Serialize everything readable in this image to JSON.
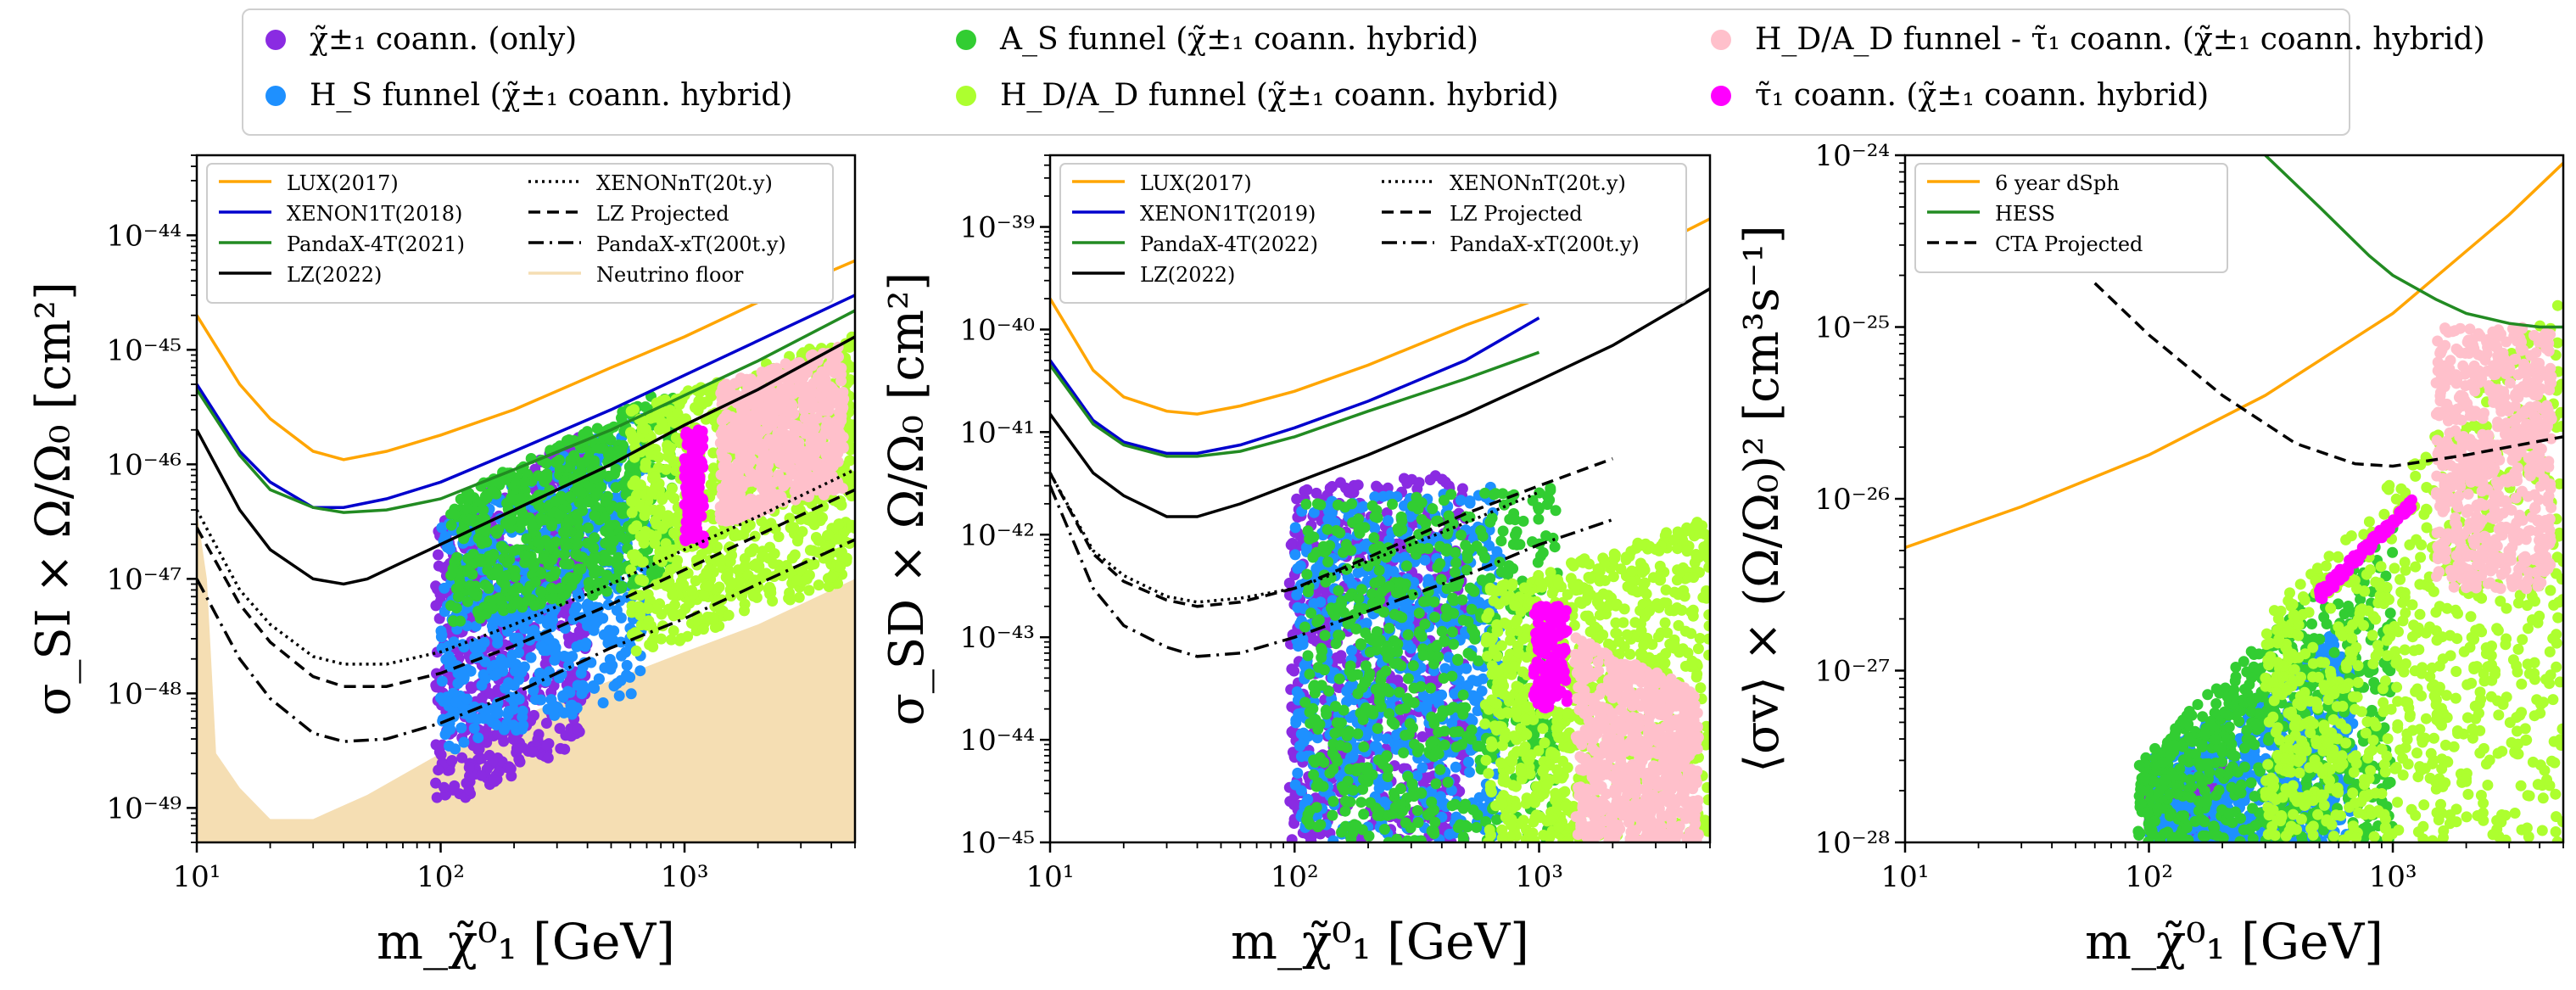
{
  "legend": {
    "items": [
      {
        "label": "χ̃±₁ coann. (only)",
        "color": "#8a2be2"
      },
      {
        "label": "H_S funnel (χ̃±₁ coann. hybrid)",
        "color": "#1e90ff"
      },
      {
        "label": "A_S funnel (χ̃±₁ coann. hybrid)",
        "color": "#32cd32"
      },
      {
        "label": "H_D/A_D funnel (χ̃±₁ coann. hybrid)",
        "color": "#adff2f"
      },
      {
        "label": "H_D/A_D funnel - τ̃₁ coann. (χ̃±₁ coann. hybrid)",
        "color": "#ffc0cb"
      },
      {
        "label": "τ̃₁ coann. (χ̃±₁ coann. hybrid)",
        "color": "#ff00ff"
      }
    ]
  },
  "chart_data": [
    {
      "type": "scatter",
      "title": "",
      "xlabel": "m_χ̃⁰₁ [GeV]",
      "ylabel": "σ_SI × Ω/Ω₀ [cm²]",
      "xscale": "log",
      "yscale": "log",
      "xlim": [
        10,
        5000
      ],
      "ylim": [
        5e-50,
        5e-44
      ],
      "xticks": [
        {
          "v": 10,
          "label": "10¹"
        },
        {
          "v": 100,
          "label": "10²"
        },
        {
          "v": 1000,
          "label": "10³"
        }
      ],
      "yticks": [
        {
          "v": 1e-49,
          "label": "10⁻⁴⁹"
        },
        {
          "v": 1e-48,
          "label": "10⁻⁴⁸"
        },
        {
          "v": 1e-47,
          "label": "10⁻⁴⁷"
        },
        {
          "v": 1e-46,
          "label": "10⁻⁴⁶"
        },
        {
          "v": 1e-45,
          "label": "10⁻⁴⁵"
        },
        {
          "v": 1e-44,
          "label": "10⁻⁴⁴"
        }
      ],
      "neutrino_floor": {
        "name": "Neutrino floor",
        "color": "#f5deb3",
        "x": [
          10,
          11,
          12,
          15,
          20,
          30,
          50,
          100,
          200,
          500,
          1000,
          2000,
          5000
        ],
        "y": [
          4e-47,
          1e-47,
          3e-49,
          1.5e-49,
          8e-50,
          8e-50,
          1.3e-49,
          3e-49,
          6e-49,
          1.3e-48,
          2.3e-48,
          4e-48,
          1e-47
        ]
      },
      "lines": [
        {
          "name": "LUX(2017)",
          "color": "#ffa500",
          "style": "solid",
          "x": [
            10,
            15,
            20,
            30,
            40,
            60,
            100,
            200,
            500,
            1000,
            2000,
            5000
          ],
          "y": [
            2e-45,
            5e-46,
            2.5e-46,
            1.3e-46,
            1.1e-46,
            1.3e-46,
            1.8e-46,
            3e-46,
            7e-46,
            1.3e-45,
            2.6e-45,
            6e-45
          ]
        },
        {
          "name": "XENON1T(2018)",
          "color": "#0000cd",
          "style": "solid",
          "x": [
            10,
            15,
            20,
            30,
            40,
            60,
            100,
            200,
            500,
            1000,
            2000,
            5000
          ],
          "y": [
            5e-46,
            1.3e-46,
            7e-47,
            4.2e-47,
            4.2e-47,
            5e-47,
            7e-47,
            1.3e-46,
            3e-46,
            6e-46,
            1.2e-45,
            3e-45
          ]
        },
        {
          "name": "PandaX-4T(2021)",
          "color": "#228b22",
          "style": "solid",
          "x": [
            10,
            15,
            20,
            30,
            40,
            60,
            100,
            200,
            500,
            1000,
            2000,
            5000
          ],
          "y": [
            4.5e-46,
            1.2e-46,
            6e-47,
            4.2e-47,
            3.8e-47,
            4e-47,
            5e-47,
            9e-47,
            2e-46,
            4e-46,
            8e-46,
            2.2e-45
          ]
        },
        {
          "name": "LZ(2022)",
          "color": "#000000",
          "style": "solid",
          "x": [
            10,
            15,
            20,
            30,
            40,
            50,
            70,
            100,
            200,
            500,
            1000,
            2000,
            5000
          ],
          "y": [
            2e-46,
            4e-47,
            1.8e-47,
            1e-47,
            9e-48,
            1e-47,
            1.4e-47,
            2e-47,
            4e-47,
            1e-46,
            2.2e-46,
            4.5e-46,
            1.3e-45
          ]
        },
        {
          "name": "XENONnT(20t.y)",
          "color": "#000000",
          "style": "dotted",
          "x": [
            10,
            15,
            20,
            30,
            40,
            60,
            100,
            200,
            500,
            1000,
            2000,
            5000
          ],
          "y": [
            4e-47,
            8e-48,
            4e-48,
            2.1e-48,
            1.8e-48,
            1.8e-48,
            2.3e-48,
            4e-48,
            9e-48,
            1.8e-47,
            3.5e-47,
            9e-47
          ]
        },
        {
          "name": "LZ Projected",
          "color": "#000000",
          "style": "dashed",
          "x": [
            10,
            15,
            20,
            30,
            40,
            60,
            100,
            200,
            500,
            1000,
            2000,
            5000
          ],
          "y": [
            2.8e-47,
            6e-48,
            2.8e-48,
            1.4e-48,
            1.15e-48,
            1.15e-48,
            1.5e-48,
            2.6e-48,
            6e-48,
            1.2e-47,
            2.4e-47,
            6e-47
          ]
        },
        {
          "name": "PandaX-xT(200t.y)",
          "color": "#000000",
          "style": "dashdot",
          "x": [
            10,
            15,
            20,
            30,
            40,
            60,
            100,
            200,
            500,
            1000,
            2000,
            5000
          ],
          "y": [
            1e-47,
            2e-48,
            9e-49,
            4.5e-49,
            3.8e-49,
            4e-49,
            5.5e-49,
            1e-48,
            2.5e-48,
            4.5e-48,
            9e-48,
            2.2e-47
          ]
        }
      ],
      "regions": [
        {
          "name": "χ̃±₁ coann. (only)",
          "color": "#8a2be2",
          "x": [
            95,
            400
          ],
          "ylow": [
            9e-50,
            4e-49
          ],
          "yhigh": [
            3e-47,
            2e-46
          ]
        },
        {
          "name": "H_S funnel (χ̃±₁ coann. hybrid)",
          "color": "#1e90ff",
          "x": [
            100,
            700
          ],
          "ylow": [
            3e-49,
            1e-48
          ],
          "yhigh": [
            3e-47,
            3e-46
          ]
        },
        {
          "name": "A_S funnel (χ̃±₁ coann. hybrid)",
          "color": "#32cd32",
          "x": [
            110,
            900
          ],
          "ylow": [
            4e-48,
            1e-47
          ],
          "yhigh": [
            5e-47,
            5e-46
          ]
        },
        {
          "name": "H_D/A_D funnel (χ̃±₁ coann. hybrid)",
          "color": "#adff2f",
          "x": [
            600,
            5000
          ],
          "ylow": [
            2e-48,
            1e-47
          ],
          "yhigh": [
            3e-46,
            1.4e-45
          ]
        },
        {
          "name": "H_D/A_D funnel - τ̃₁ coann. (χ̃±₁ coann. hybrid)",
          "color": "#ffc0cb",
          "x": [
            1400,
            4500
          ],
          "ylow": [
            3e-47,
            6e-47
          ],
          "yhigh": [
            5e-46,
            1.1e-45
          ]
        },
        {
          "name": "τ̃₁ coann. (χ̃±₁ coann. hybrid)",
          "color": "#ff00ff",
          "x": [
            1000,
            1200
          ],
          "ylow": [
            2e-47,
            2e-47
          ],
          "yhigh": [
            2e-46,
            2e-46
          ]
        }
      ],
      "legend_cols": 2
    },
    {
      "type": "scatter",
      "title": "",
      "xlabel": "m_χ̃⁰₁ [GeV]",
      "ylabel": "σ_SD × Ω/Ω₀ [cm²]",
      "xscale": "log",
      "yscale": "log",
      "xlim": [
        10,
        5000
      ],
      "ylim": [
        1e-45,
        5e-39
      ],
      "xticks": [
        {
          "v": 10,
          "label": "10¹"
        },
        {
          "v": 100,
          "label": "10²"
        },
        {
          "v": 1000,
          "label": "10³"
        }
      ],
      "yticks": [
        {
          "v": 1e-45,
          "label": "10⁻⁴⁵"
        },
        {
          "v": 1e-44,
          "label": "10⁻⁴⁴"
        },
        {
          "v": 1e-43,
          "label": "10⁻⁴³"
        },
        {
          "v": 1e-42,
          "label": "10⁻⁴²"
        },
        {
          "v": 1e-41,
          "label": "10⁻⁴¹"
        },
        {
          "v": 1e-40,
          "label": "10⁻⁴⁰"
        },
        {
          "v": 1e-39,
          "label": "10⁻³⁹"
        }
      ],
      "lines": [
        {
          "name": "LUX(2017)",
          "color": "#ffa500",
          "style": "solid",
          "x": [
            10,
            15,
            20,
            30,
            40,
            60,
            100,
            200,
            500,
            1000,
            2000,
            5000
          ],
          "y": [
            2e-40,
            4e-41,
            2.2e-41,
            1.6e-41,
            1.5e-41,
            1.8e-41,
            2.5e-41,
            4.5e-41,
            1.1e-40,
            2e-40,
            4e-40,
            1.2e-39
          ]
        },
        {
          "name": "XENON1T(2019)",
          "color": "#0000cd",
          "style": "solid",
          "x": [
            10,
            15,
            20,
            30,
            40,
            60,
            100,
            200,
            500,
            1000
          ],
          "y": [
            5e-41,
            1.3e-41,
            8e-42,
            6.2e-42,
            6.2e-42,
            7.5e-42,
            1.1e-41,
            2e-41,
            5e-41,
            1.3e-40
          ]
        },
        {
          "name": "PandaX-4T(2022)",
          "color": "#228b22",
          "style": "solid",
          "x": [
            10,
            15,
            20,
            30,
            40,
            60,
            100,
            200,
            500,
            1000
          ],
          "y": [
            4.5e-41,
            1.2e-41,
            7.5e-42,
            5.8e-42,
            5.8e-42,
            6.5e-42,
            9e-42,
            1.6e-41,
            3.3e-41,
            6e-41
          ]
        },
        {
          "name": "LZ(2022)",
          "color": "#000000",
          "style": "solid",
          "x": [
            10,
            15,
            20,
            30,
            40,
            60,
            100,
            200,
            500,
            1000,
            2000,
            5000
          ],
          "y": [
            1.5e-41,
            4e-42,
            2.4e-42,
            1.5e-42,
            1.5e-42,
            2e-42,
            3.2e-42,
            6e-42,
            1.5e-41,
            3.2e-41,
            7e-41,
            2.5e-40
          ]
        },
        {
          "name": "XENONnT(20t.y)",
          "color": "#000000",
          "style": "dotted",
          "x": [
            10,
            15,
            20,
            30,
            40,
            60,
            100,
            200,
            500,
            1000
          ],
          "y": [
            4e-42,
            7e-43,
            4e-43,
            2.5e-43,
            2.2e-43,
            2.4e-43,
            3e-43,
            5.5e-43,
            1.3e-42,
            2.6e-42
          ]
        },
        {
          "name": "LZ Projected",
          "color": "#000000",
          "style": "dashed",
          "x": [
            10,
            15,
            20,
            30,
            40,
            60,
            100,
            200,
            500,
            1000,
            2000
          ],
          "y": [
            4e-42,
            6.5e-43,
            3.5e-43,
            2.3e-43,
            2e-43,
            2.2e-43,
            3e-43,
            6e-43,
            1.6e-42,
            3e-42,
            5.5e-42
          ]
        },
        {
          "name": "PandaX-xT(200t.y)",
          "color": "#000000",
          "style": "dashdot",
          "x": [
            10,
            15,
            20,
            30,
            40,
            60,
            100,
            200,
            500,
            1000,
            2000
          ],
          "y": [
            3e-42,
            3e-43,
            1.3e-43,
            8e-44,
            6.5e-44,
            7e-44,
            1e-43,
            1.8e-43,
            4e-43,
            8e-43,
            1.4e-42
          ]
        }
      ],
      "regions": [
        {
          "name": "χ̃±₁ coann. (only)",
          "color": "#8a2be2",
          "x": [
            95,
            500
          ],
          "ylow": [
            1e-45,
            1e-45
          ],
          "yhigh": [
            3e-42,
            4e-42
          ]
        },
        {
          "name": "H_S funnel (χ̃±₁ coann. hybrid)",
          "color": "#1e90ff",
          "x": [
            100,
            700
          ],
          "ylow": [
            1e-45,
            1e-45
          ],
          "yhigh": [
            2e-42,
            3e-42
          ]
        },
        {
          "name": "A_S funnel (χ̃±₁ coann. hybrid)",
          "color": "#32cd32",
          "x": [
            110,
            1200
          ],
          "ylow": [
            1e-45,
            1e-45
          ],
          "yhigh": [
            2e-42,
            3e-42
          ]
        },
        {
          "name": "H_D/A_D funnel (χ̃±₁ coann. hybrid)",
          "color": "#adff2f",
          "x": [
            600,
            5000
          ],
          "ylow": [
            1e-45,
            1e-45
          ],
          "yhigh": [
            3e-43,
            1.5e-42
          ]
        },
        {
          "name": "H_D/A_D funnel - τ̃₁ coann. (χ̃±₁ coann. hybrid)",
          "color": "#ffc0cb",
          "x": [
            1400,
            4500
          ],
          "ylow": [
            1e-45,
            1e-45
          ],
          "yhigh": [
            1e-43,
            3e-44
          ]
        },
        {
          "name": "τ̃₁ coann. (χ̃±₁ coann. hybrid)",
          "color": "#ff00ff",
          "x": [
            950,
            1300
          ],
          "ylow": [
            2e-44,
            2e-44
          ],
          "yhigh": [
            2e-43,
            2e-43
          ]
        }
      ],
      "legend_cols": 2
    },
    {
      "type": "scatter",
      "title": "",
      "xlabel": "m_χ̃⁰₁ [GeV]",
      "ylabel": "⟨σv⟩ × (Ω/Ω₀)² [cm³s⁻¹]",
      "xscale": "log",
      "yscale": "log",
      "xlim": [
        10,
        5000
      ],
      "ylim": [
        1e-28,
        1e-24
      ],
      "xticks": [
        {
          "v": 10,
          "label": "10¹"
        },
        {
          "v": 100,
          "label": "10²"
        },
        {
          "v": 1000,
          "label": "10³"
        }
      ],
      "yticks": [
        {
          "v": 1e-28,
          "label": "10⁻²⁸"
        },
        {
          "v": 1e-27,
          "label": "10⁻²⁷"
        },
        {
          "v": 1e-26,
          "label": "10⁻²⁶"
        },
        {
          "v": 1e-25,
          "label": "10⁻²⁵"
        },
        {
          "v": 1e-24,
          "label": "10⁻²⁴"
        }
      ],
      "lines": [
        {
          "name": "6 year dSph",
          "color": "#ffa500",
          "style": "solid",
          "x": [
            10,
            30,
            100,
            300,
            1000,
            3000,
            5000
          ],
          "y": [
            5.2e-27,
            9e-27,
            1.8e-26,
            4e-26,
            1.2e-25,
            4.5e-25,
            9e-25
          ]
        },
        {
          "name": "HESS",
          "color": "#228b22",
          "style": "solid",
          "x": [
            300,
            500,
            800,
            1000,
            1500,
            2000,
            3000,
            4000,
            5000
          ],
          "y": [
            1e-24,
            5e-25,
            2.6e-25,
            2e-25,
            1.45e-25,
            1.2e-25,
            1.05e-25,
            1e-25,
            1e-25
          ]
        },
        {
          "name": "CTA Projected",
          "color": "#000000",
          "style": "dashed",
          "x": [
            60,
            100,
            200,
            400,
            700,
            1000,
            2000,
            5000
          ],
          "y": [
            1.8e-25,
            9e-26,
            4e-26,
            2.1e-26,
            1.6e-26,
            1.55e-26,
            1.8e-26,
            2.3e-26
          ]
        }
      ],
      "regions": [
        {
          "name": "χ̃±₁ coann. (only)",
          "color": "#8a2be2",
          "x": [
            100,
            200
          ],
          "ylow": [
            1e-28,
            1e-28
          ],
          "yhigh": [
            2e-28,
            3e-28
          ]
        },
        {
          "name": "H_S funnel (χ̃±₁ coann. hybrid)",
          "color": "#1e90ff",
          "x": [
            100,
            700
          ],
          "ylow": [
            1e-28,
            1e-28
          ],
          "yhigh": [
            3e-28,
            2e-27
          ]
        },
        {
          "name": "A_S funnel (χ̃±₁ coann. hybrid)",
          "color": "#32cd32",
          "x": [
            90,
            1000
          ],
          "ylow": [
            1e-28,
            1e-28
          ],
          "yhigh": [
            3e-28,
            8e-27
          ]
        },
        {
          "name": "H_D/A_D funnel (χ̃±₁ coann. hybrid)",
          "color": "#adff2f",
          "x": [
            300,
            5000
          ],
          "ylow": [
            1e-28,
            1e-28
          ],
          "yhigh": [
            2e-27,
            1.5e-25
          ]
        },
        {
          "name": "H_D/A_D funnel - τ̃₁ coann. (χ̃±₁ coann. hybrid)",
          "color": "#ffc0cb",
          "x": [
            1500,
            4500
          ],
          "ylow": [
            3e-27,
            3e-27
          ],
          "yhigh": [
            1e-25,
            1e-25
          ]
        },
        {
          "name": "τ̃₁ coann. (χ̃±₁ coann. hybrid)",
          "color": "#ff00ff",
          "x": [
            500,
            1200
          ],
          "ylow": [
            2.5e-27,
            9e-27
          ],
          "yhigh": [
            3e-27,
            1e-26
          ]
        }
      ],
      "legend_cols": 1
    }
  ]
}
